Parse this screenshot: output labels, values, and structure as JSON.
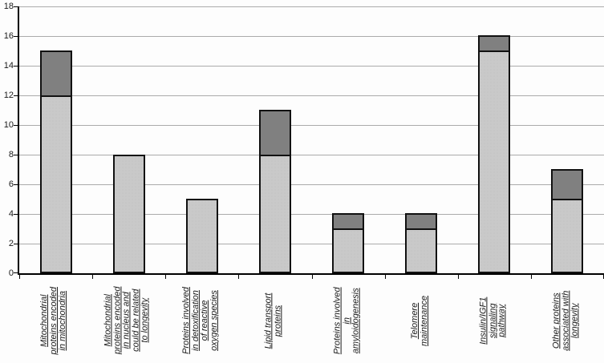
{
  "chart_data": {
    "type": "bar",
    "stacked": true,
    "title": "",
    "xlabel": "",
    "ylabel": "",
    "ylim": [
      0,
      18
    ],
    "ytick_step": 2,
    "yticks": [
      "0",
      "2",
      "4",
      "6",
      "8",
      "10",
      "12",
      "14",
      "16",
      "18"
    ],
    "grid": true,
    "legend": "none",
    "categories": [
      "Mitochondrial proteins encoded in mitochondria",
      "Mitochondrial proteins encoded in nucleus and could be related to longevity",
      "Proteins involved in detoxification of reactive oxygen species",
      "Lipid transport proteins",
      "Proteins involved in amyloidogenesis",
      "Telomere maintenance",
      "Insulin/IGF1 signaling pathway",
      "Other proteins associated with longevity"
    ],
    "category_label_lines": [
      [
        "Mitochondrial",
        "proteins encoded",
        "in mitochondria"
      ],
      [
        "Mitochondrial",
        "proteins encoded",
        "in nucleus and",
        "could be related",
        "to longevity"
      ],
      [
        "Proteins involved",
        "in detoxification",
        "of reactive",
        "oxygen species"
      ],
      [
        "Lipid transport",
        "proteins"
      ],
      [
        "Proteins involved",
        "in",
        "amyloidogenesis"
      ],
      [
        "Telomere",
        "maintenance"
      ],
      [
        "Insulin/IGF1",
        "signaling",
        "pathway"
      ],
      [
        "Other proteins",
        "associated with",
        "longevity"
      ]
    ],
    "series": [
      {
        "name": "base-segment",
        "color": "#c9c9c9",
        "values": [
          12,
          8,
          5,
          8,
          3,
          3,
          15,
          5
        ]
      },
      {
        "name": "top-segment",
        "color": "#808080",
        "values": [
          3,
          0,
          0,
          3,
          1,
          1,
          1,
          2
        ]
      }
    ],
    "totals": [
      15,
      8,
      5,
      11,
      4,
      4,
      16,
      7
    ],
    "colors": {
      "bar_border": "#111111",
      "gridline": "#ababab",
      "axis": "#000000",
      "background": "#fdfdfd",
      "text": "#1a1a1a"
    }
  }
}
